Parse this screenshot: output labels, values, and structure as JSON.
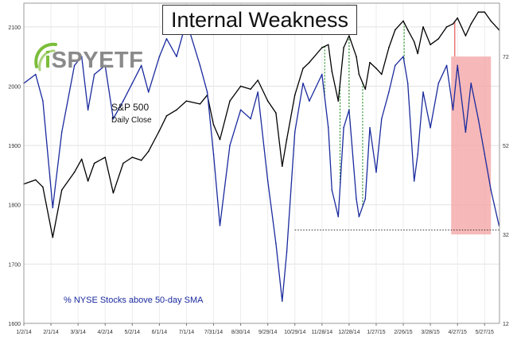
{
  "title": "Internal Weakness",
  "logo": {
    "prefix": "i",
    "text": "SPYETF"
  },
  "annotations": {
    "sp_label": "S&P 500",
    "sp_sub": "Daily Close",
    "breadth_label": "% NYSE Stocks above 50-day SMA"
  },
  "colors": {
    "spx": "#000000",
    "breadth": "#1a2a9e",
    "divergence_green": "#1a8a1a",
    "divergence_red": "#e04848",
    "highlight_fill": "#f4a6a6",
    "support_line": "#333333",
    "logo_green": "#7bbd3a"
  },
  "chart_data": {
    "type": "line",
    "x_tick_labels": [
      "1/2/14",
      "2/1/14",
      "3/3/14",
      "4/2/14",
      "5/2/14",
      "6/1/14",
      "7/1/14",
      "7/31/14",
      "8/30/14",
      "9/29/14",
      "10/29/14",
      "11/28/14",
      "12/28/14",
      "1/27/15",
      "2/26/15",
      "3/28/15",
      "4/27/15",
      "5/27/15"
    ],
    "left_axis": {
      "label": "",
      "ticks": [
        1600,
        1700,
        1800,
        1900,
        2000,
        2100
      ],
      "range": [
        1600,
        2140
      ]
    },
    "right_axis": {
      "label": "",
      "ticks": [
        12,
        32,
        52,
        72
      ],
      "range": [
        12,
        84
      ]
    },
    "series": [
      {
        "name": "S&P 500",
        "axis": "left",
        "x": [
          "1/2/14",
          "1/15/14",
          "1/23/14",
          "2/3/14",
          "2/13/14",
          "2/27/14",
          "3/7/14",
          "3/14/14",
          "3/21/14",
          "4/2/14",
          "4/11/14",
          "4/22/14",
          "5/2/14",
          "5/12/14",
          "5/20/14",
          "6/1/14",
          "6/9/14",
          "6/20/14",
          "7/1/14",
          "7/16/14",
          "7/24/14",
          "7/31/14",
          "8/7/14",
          "8/18/14",
          "8/30/14",
          "9/10/14",
          "9/18/14",
          "9/29/14",
          "10/8/14",
          "10/15/14",
          "10/20/14",
          "10/29/14",
          "11/7/14",
          "11/14/14",
          "11/28/14",
          "12/5/14",
          "12/9/14",
          "12/16/14",
          "12/22/14",
          "12/28/14",
          "1/5/15",
          "1/8/15",
          "1/15/15",
          "1/20/15",
          "1/27/15",
          "2/2/15",
          "2/10/15",
          "2/17/15",
          "2/26/15",
          "3/3/15",
          "3/10/15",
          "3/14/15",
          "3/20/15",
          "3/28/15",
          "4/6/15",
          "4/15/15",
          "4/22/15",
          "4/27/15",
          "5/6/15",
          "5/12/15",
          "5/20/15",
          "5/27/15",
          "6/3/15",
          "6/12/15"
        ],
        "values": [
          1835,
          1842,
          1830,
          1745,
          1825,
          1855,
          1877,
          1840,
          1870,
          1880,
          1820,
          1870,
          1880,
          1875,
          1890,
          1925,
          1950,
          1960,
          1975,
          1970,
          1985,
          1935,
          1910,
          1975,
          2000,
          1995,
          2010,
          1975,
          1955,
          1865,
          1910,
          1985,
          2030,
          2040,
          2065,
          2070,
          2025,
          1975,
          2065,
          2085,
          2050,
          2020,
          1995,
          2040,
          2030,
          2020,
          2065,
          2095,
          2110,
          2095,
          2075,
          2055,
          2100,
          2070,
          2080,
          2100,
          2105,
          2115,
          2085,
          2105,
          2125,
          2125,
          2110,
          2095
        ]
      },
      {
        "name": "% NYSE Stocks above 50-day SMA",
        "axis": "right",
        "x": [
          "1/2/14",
          "1/15/14",
          "1/23/14",
          "2/3/14",
          "2/13/14",
          "2/27/14",
          "3/7/14",
          "3/14/14",
          "3/21/14",
          "4/2/14",
          "4/11/14",
          "4/22/14",
          "5/2/14",
          "5/12/14",
          "5/20/14",
          "6/1/14",
          "6/9/14",
          "6/20/14",
          "7/1/14",
          "7/16/14",
          "7/24/14",
          "7/31/14",
          "8/7/14",
          "8/18/14",
          "8/30/14",
          "9/10/14",
          "9/18/14",
          "9/29/14",
          "10/8/14",
          "10/15/14",
          "10/20/14",
          "10/29/14",
          "11/7/14",
          "11/14/14",
          "11/28/14",
          "12/5/14",
          "12/9/14",
          "12/16/14",
          "12/22/14",
          "12/28/14",
          "1/5/15",
          "1/8/15",
          "1/15/15",
          "1/20/15",
          "1/27/15",
          "2/2/15",
          "2/10/15",
          "2/17/15",
          "2/26/15",
          "3/3/15",
          "3/10/15",
          "3/14/15",
          "3/20/15",
          "3/28/15",
          "4/6/15",
          "4/15/15",
          "4/22/15",
          "4/27/15",
          "5/6/15",
          "5/12/15",
          "5/20/15",
          "5/27/15",
          "6/3/15",
          "6/12/15"
        ],
        "values": [
          66,
          68,
          62,
          38,
          55,
          70,
          72,
          60,
          68,
          70,
          58,
          62,
          66,
          70,
          64,
          72,
          76,
          72,
          80,
          70,
          64,
          50,
          34,
          52,
          60,
          58,
          64,
          44,
          30,
          17,
          28,
          55,
          66,
          62,
          68,
          56,
          42,
          36,
          56,
          60,
          40,
          36,
          40,
          56,
          46,
          58,
          64,
          70,
          72,
          66,
          44,
          50,
          64,
          56,
          66,
          70,
          60,
          70,
          55,
          66,
          58,
          50,
          42,
          34
        ]
      }
    ],
    "divergences": {
      "green_dates": [
        "12/1/14",
        "12/18/14",
        "12/28/14",
        "1/12/15",
        "2/27/15"
      ],
      "red_dates": [
        "4/24/15"
      ]
    },
    "highlight": {
      "from": "4/20/15",
      "to": "6/3/15",
      "breadth_top": 72,
      "breadth_bottom": 32
    },
    "support_line": {
      "from": "10/29/14",
      "to": "6/12/15",
      "level": 33
    },
    "grid": true,
    "legend": "none"
  }
}
